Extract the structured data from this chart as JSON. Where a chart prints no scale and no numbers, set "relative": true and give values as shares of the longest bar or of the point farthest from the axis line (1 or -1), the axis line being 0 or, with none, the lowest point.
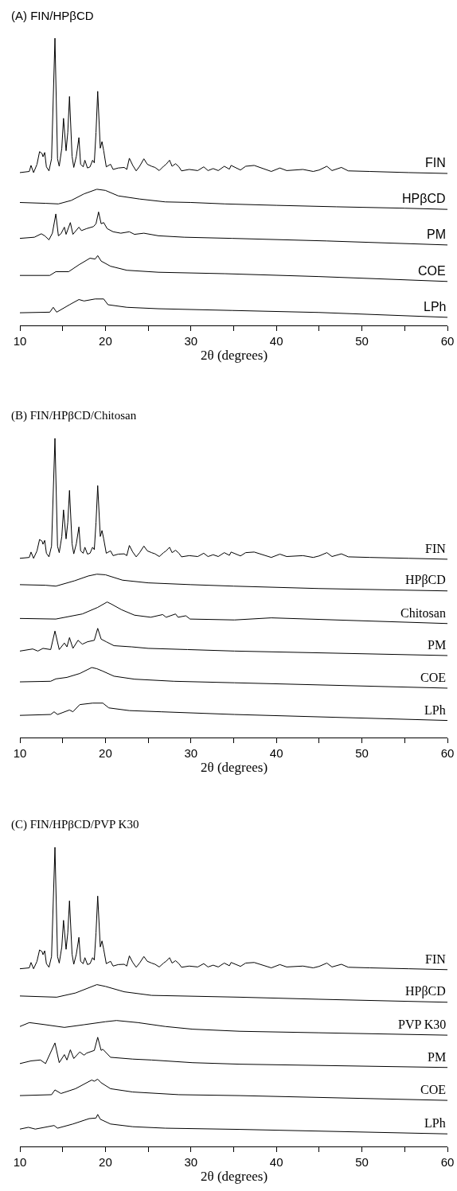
{
  "chart_data": [
    {
      "type": "line",
      "title": "(A) FIN/HPβCD",
      "xlabel": "2θ (degrees)",
      "relative": true,
      "tick_labels": "x",
      "xlim": [
        10,
        60
      ],
      "xticks": [
        10,
        {
          "value": 15,
          "label": null
        },
        20,
        {
          "value": 25,
          "label": null
        },
        30,
        {
          "value": 35,
          "label": null
        },
        40,
        {
          "value": 45,
          "label": null
        },
        50,
        {
          "value": 55,
          "label": null
        },
        60
      ],
      "series": [
        {
          "name": "FIN",
          "color": "#000000",
          "x": [
            10.0,
            11.1,
            11.3,
            11.6,
            12.0,
            12.3,
            12.6,
            12.7,
            12.9,
            13.1,
            13.4,
            13.7,
            14.1,
            14.4,
            14.6,
            14.9,
            15.1,
            15.4,
            15.6,
            15.8,
            16.1,
            16.3,
            16.6,
            16.9,
            17.1,
            17.4,
            17.6,
            17.9,
            18.2,
            18.5,
            18.7,
            18.9,
            19.1,
            19.4,
            19.6,
            19.8,
            20.1,
            20.6,
            20.9,
            21.5,
            22.2,
            22.5,
            22.8,
            23.2,
            23.6,
            24.0,
            24.5,
            24.9,
            25.4,
            25.8,
            26.3,
            26.8,
            27.1,
            27.5,
            27.8,
            28.2,
            28.6,
            28.9,
            29.8,
            30.8,
            31.5,
            32.0,
            32.6,
            33.2,
            33.9,
            34.5,
            34.7,
            35.8,
            36.4,
            37.4,
            39.4,
            40.4,
            41.2,
            43.1,
            44.3,
            45.0,
            45.9,
            46.5,
            47.6,
            48.4,
            50.9,
            55.5,
            60.0
          ],
          "values": [
            0.532,
            0.536,
            0.557,
            0.532,
            0.561,
            0.605,
            0.598,
            0.587,
            0.602,
            0.552,
            0.538,
            0.58,
            1.0,
            0.58,
            0.554,
            0.617,
            0.721,
            0.608,
            0.672,
            0.797,
            0.589,
            0.55,
            0.589,
            0.654,
            0.561,
            0.552,
            0.575,
            0.548,
            0.552,
            0.575,
            0.566,
            0.672,
            0.815,
            0.617,
            0.64,
            0.608,
            0.552,
            0.561,
            0.543,
            0.548,
            0.55,
            0.543,
            0.582,
            0.557,
            0.538,
            0.554,
            0.58,
            0.561,
            0.554,
            0.55,
            0.539,
            0.554,
            0.561,
            0.575,
            0.554,
            0.563,
            0.552,
            0.538,
            0.543,
            0.539,
            0.552,
            0.539,
            0.546,
            0.539,
            0.554,
            0.544,
            0.557,
            0.541,
            0.554,
            0.557,
            0.536,
            0.548,
            0.539,
            0.543,
            0.536,
            0.541,
            0.554,
            0.539,
            0.55,
            0.538,
            0.536,
            0.532,
            0.529
          ]
        },
        {
          "name": "HPβCD",
          "color": "#000000",
          "x": [
            10,
            13,
            14.5,
            16,
            17.5,
            19,
            20,
            21.5,
            24,
            27,
            30,
            34,
            40,
            47,
            55,
            60
          ],
          "values": [
            0.428,
            0.425,
            0.423,
            0.435,
            0.458,
            0.474,
            0.47,
            0.451,
            0.44,
            0.43,
            0.428,
            0.423,
            0.418,
            0.413,
            0.408,
            0.404
          ]
        },
        {
          "name": "PM",
          "color": "#000000",
          "x": [
            10,
            11.7,
            12.5,
            12.9,
            13.4,
            13.8,
            14.2,
            14.5,
            14.8,
            15.2,
            15.4,
            15.9,
            16.2,
            16.9,
            17.2,
            17.8,
            18.6,
            18.9,
            19.2,
            19.5,
            19.8,
            20.2,
            20.9,
            21.8,
            22.8,
            23.4,
            24.5,
            26.2,
            29.2,
            34.8,
            45.9,
            60
          ],
          "values": [
            0.303,
            0.307,
            0.319,
            0.312,
            0.298,
            0.321,
            0.388,
            0.312,
            0.319,
            0.342,
            0.317,
            0.358,
            0.317,
            0.342,
            0.33,
            0.337,
            0.344,
            0.354,
            0.395,
            0.354,
            0.358,
            0.337,
            0.326,
            0.321,
            0.326,
            0.317,
            0.321,
            0.312,
            0.307,
            0.303,
            0.294,
            0.28
          ]
        },
        {
          "name": "COE",
          "color": "#000000",
          "x": [
            10,
            13.5,
            14.2,
            15.7,
            16.9,
            18.2,
            18.8,
            19.1,
            19.5,
            20.6,
            22.5,
            26.2,
            34,
            45,
            60
          ],
          "values": [
            0.174,
            0.174,
            0.187,
            0.187,
            0.211,
            0.234,
            0.231,
            0.243,
            0.224,
            0.206,
            0.192,
            0.185,
            0.18,
            0.17,
            0.153
          ]
        },
        {
          "name": "LPh",
          "color": "#000000",
          "x": [
            10,
            13.5,
            13.9,
            14.3,
            15.8,
            16.9,
            17.5,
            18.8,
            19.8,
            20.3,
            22.5,
            26.2,
            34.8,
            45,
            60
          ],
          "values": [
            0.044,
            0.046,
            0.063,
            0.046,
            0.072,
            0.09,
            0.085,
            0.092,
            0.092,
            0.072,
            0.063,
            0.058,
            0.052,
            0.045,
            0.028
          ]
        }
      ]
    },
    {
      "type": "line",
      "title": "(B) FIN/HPβCD/Chitosan",
      "xlabel": "2θ (degrees)",
      "relative": true,
      "tick_labels": "x",
      "xlim": [
        10,
        60
      ],
      "xticks": [
        10,
        {
          "value": 15,
          "label": null
        },
        20,
        {
          "value": 25,
          "label": null
        },
        30,
        {
          "value": 35,
          "label": null
        },
        40,
        {
          "value": 45,
          "label": null
        },
        50,
        {
          "value": 55,
          "label": null
        },
        60
      ],
      "series": [
        {
          "name": "FIN",
          "color": "#000000",
          "x": [
            10.0,
            11.1,
            11.3,
            11.6,
            12.0,
            12.3,
            12.6,
            12.7,
            12.9,
            13.1,
            13.4,
            13.7,
            14.1,
            14.4,
            14.6,
            14.9,
            15.1,
            15.4,
            15.6,
            15.8,
            16.1,
            16.3,
            16.6,
            16.9,
            17.1,
            17.4,
            17.6,
            17.9,
            18.2,
            18.5,
            18.7,
            18.9,
            19.1,
            19.4,
            19.6,
            19.8,
            20.1,
            20.6,
            20.9,
            21.5,
            22.2,
            22.5,
            22.8,
            23.2,
            23.6,
            24.0,
            24.5,
            24.9,
            25.4,
            25.8,
            26.3,
            26.8,
            27.1,
            27.5,
            27.8,
            28.2,
            28.6,
            28.9,
            29.8,
            30.8,
            31.5,
            32.0,
            32.6,
            33.2,
            33.9,
            34.5,
            34.7,
            35.8,
            36.4,
            37.4,
            39.4,
            40.4,
            41.2,
            43.1,
            44.3,
            45.0,
            45.9,
            46.5,
            47.6,
            48.4,
            50.9,
            55.5,
            60.0
          ],
          "values": [
            0.599,
            0.602,
            0.62,
            0.599,
            0.624,
            0.662,
            0.656,
            0.646,
            0.659,
            0.616,
            0.604,
            0.64,
            1.0,
            0.64,
            0.618,
            0.672,
            0.761,
            0.664,
            0.719,
            0.826,
            0.648,
            0.614,
            0.648,
            0.704,
            0.624,
            0.616,
            0.636,
            0.613,
            0.616,
            0.636,
            0.628,
            0.719,
            0.842,
            0.672,
            0.692,
            0.664,
            0.616,
            0.624,
            0.608,
            0.613,
            0.614,
            0.608,
            0.642,
            0.62,
            0.604,
            0.618,
            0.64,
            0.624,
            0.618,
            0.614,
            0.605,
            0.618,
            0.624,
            0.636,
            0.618,
            0.626,
            0.616,
            0.604,
            0.608,
            0.605,
            0.616,
            0.605,
            0.611,
            0.605,
            0.618,
            0.609,
            0.62,
            0.607,
            0.618,
            0.62,
            0.602,
            0.613,
            0.605,
            0.608,
            0.602,
            0.607,
            0.618,
            0.605,
            0.614,
            0.604,
            0.602,
            0.599,
            0.596
          ]
        },
        {
          "name": "HPβCD",
          "color": "#000000",
          "x": [
            10,
            13,
            14.2,
            16.4,
            18,
            19,
            20,
            22,
            25,
            30,
            35,
            45,
            60
          ],
          "values": [
            0.511,
            0.509,
            0.506,
            0.524,
            0.54,
            0.546,
            0.544,
            0.526,
            0.517,
            0.511,
            0.506,
            0.498,
            0.49
          ]
        },
        {
          "name": "Chitosan",
          "color": "#000000",
          "x": [
            10,
            14.2,
            17.3,
            19.1,
            20.2,
            20.7,
            21.9,
            23.4,
            25.3,
            26.7,
            27.1,
            28.2,
            28.5,
            29.4,
            29.9,
            35.1,
            39.4,
            60
          ],
          "values": [
            0.398,
            0.396,
            0.413,
            0.435,
            0.453,
            0.446,
            0.427,
            0.409,
            0.402,
            0.411,
            0.402,
            0.413,
            0.402,
            0.407,
            0.396,
            0.393,
            0.4,
            0.381
          ]
        },
        {
          "name": "PM",
          "color": "#000000",
          "x": [
            10,
            11.5,
            12.1,
            12.7,
            13.6,
            14.1,
            14.6,
            15.2,
            15.5,
            15.8,
            16.2,
            16.8,
            17.3,
            17.9,
            18.7,
            19.1,
            19.5,
            20.1,
            21.0,
            23.1,
            25.0,
            29.6,
            35.1,
            60
          ],
          "values": [
            0.289,
            0.296,
            0.289,
            0.298,
            0.294,
            0.356,
            0.294,
            0.316,
            0.303,
            0.334,
            0.298,
            0.325,
            0.312,
            0.32,
            0.325,
            0.365,
            0.329,
            0.32,
            0.307,
            0.303,
            0.298,
            0.294,
            0.289,
            0.274
          ]
        },
        {
          "name": "COE",
          "color": "#000000",
          "x": [
            10,
            13.6,
            14.2,
            15.5,
            17.0,
            18.4,
            19.0,
            19.6,
            21.0,
            23.4,
            28.0,
            35.1,
            60
          ],
          "values": [
            0.186,
            0.188,
            0.196,
            0.201,
            0.214,
            0.234,
            0.23,
            0.223,
            0.205,
            0.195,
            0.188,
            0.183,
            0.165
          ]
        },
        {
          "name": "LPh",
          "color": "#000000",
          "x": [
            10,
            13.6,
            14.0,
            14.4,
            15.8,
            16.2,
            17.0,
            18.5,
            19.7,
            20.4,
            22.8,
            26.5,
            35.1,
            60
          ],
          "values": [
            0.074,
            0.077,
            0.086,
            0.077,
            0.092,
            0.086,
            0.11,
            0.115,
            0.115,
            0.099,
            0.09,
            0.086,
            0.077,
            0.057
          ]
        }
      ]
    },
    {
      "type": "line",
      "title": "(C) FIN/HPβCD/PVP K30",
      "xlabel": "2θ (degrees)",
      "relative": true,
      "tick_labels": "x",
      "xlim": [
        10,
        60
      ],
      "xticks": [
        10,
        {
          "value": 15,
          "label": null
        },
        20,
        {
          "value": 25,
          "label": null
        },
        30,
        {
          "value": 35,
          "label": null
        },
        40,
        {
          "value": 45,
          "label": null
        },
        50,
        {
          "value": 55,
          "label": null
        },
        60
      ],
      "series": [
        {
          "name": "FIN",
          "color": "#000000",
          "x": [
            10.0,
            11.1,
            11.3,
            11.6,
            12.0,
            12.3,
            12.6,
            12.7,
            12.9,
            13.1,
            13.4,
            13.7,
            14.1,
            14.4,
            14.6,
            14.9,
            15.1,
            15.4,
            15.6,
            15.8,
            16.1,
            16.3,
            16.6,
            16.9,
            17.1,
            17.4,
            17.6,
            17.9,
            18.2,
            18.5,
            18.7,
            18.9,
            19.1,
            19.4,
            19.6,
            19.8,
            20.1,
            20.6,
            20.9,
            21.5,
            22.2,
            22.5,
            22.8,
            23.2,
            23.6,
            24.0,
            24.5,
            24.9,
            25.4,
            25.8,
            26.3,
            26.8,
            27.1,
            27.5,
            27.8,
            28.2,
            28.6,
            28.9,
            29.8,
            30.8,
            31.5,
            32.0,
            32.6,
            33.2,
            33.9,
            34.5,
            34.7,
            35.8,
            36.4,
            37.4,
            39.4,
            40.4,
            41.2,
            43.1,
            44.3,
            45.0,
            45.9,
            46.5,
            47.6,
            48.4,
            50.9,
            55.5,
            60.0
          ],
          "values": [
            0.594,
            0.597,
            0.615,
            0.594,
            0.619,
            0.657,
            0.651,
            0.641,
            0.654,
            0.611,
            0.599,
            0.635,
            1.0,
            0.635,
            0.613,
            0.667,
            0.756,
            0.659,
            0.714,
            0.821,
            0.643,
            0.609,
            0.643,
            0.699,
            0.619,
            0.611,
            0.631,
            0.608,
            0.611,
            0.631,
            0.623,
            0.714,
            0.837,
            0.667,
            0.687,
            0.659,
            0.611,
            0.619,
            0.603,
            0.608,
            0.609,
            0.603,
            0.637,
            0.615,
            0.599,
            0.613,
            0.635,
            0.619,
            0.613,
            0.609,
            0.6,
            0.613,
            0.619,
            0.631,
            0.613,
            0.621,
            0.611,
            0.599,
            0.603,
            0.6,
            0.611,
            0.6,
            0.606,
            0.6,
            0.613,
            0.604,
            0.615,
            0.602,
            0.613,
            0.615,
            0.597,
            0.608,
            0.6,
            0.603,
            0.597,
            0.602,
            0.613,
            0.6,
            0.609,
            0.599,
            0.597,
            0.594,
            0.591
          ]
        },
        {
          "name": "HPβCD",
          "color": "#000000",
          "x": [
            10,
            14.3,
            16.5,
            19.0,
            20.0,
            22.2,
            25.4,
            35.7,
            45,
            60
          ],
          "values": [
            0.503,
            0.499,
            0.513,
            0.541,
            0.535,
            0.517,
            0.505,
            0.499,
            0.492,
            0.482
          ]
        },
        {
          "name": "PVP K30",
          "color": "#000000",
          "x": [
            10,
            11.1,
            12.7,
            15.2,
            17.5,
            20.0,
            21.3,
            23.8,
            27.0,
            30.2,
            35.7,
            45,
            60
          ],
          "values": [
            0.401,
            0.414,
            0.408,
            0.398,
            0.407,
            0.417,
            0.421,
            0.414,
            0.401,
            0.392,
            0.385,
            0.38,
            0.372
          ]
        },
        {
          "name": "PM",
          "color": "#000000",
          "x": [
            10,
            11.3,
            12.4,
            13.0,
            14.1,
            14.6,
            15.2,
            15.5,
            15.9,
            16.3,
            17.0,
            17.5,
            17.8,
            18.7,
            19.1,
            19.5,
            19.7,
            20.6,
            23.2,
            25.4,
            30.2,
            35.7,
            60
          ],
          "values": [
            0.277,
            0.286,
            0.289,
            0.277,
            0.346,
            0.28,
            0.307,
            0.289,
            0.323,
            0.294,
            0.316,
            0.305,
            0.312,
            0.321,
            0.365,
            0.321,
            0.325,
            0.298,
            0.292,
            0.289,
            0.28,
            0.275,
            0.264
          ]
        },
        {
          "name": "COE",
          "color": "#000000",
          "x": [
            10,
            13.7,
            14.1,
            14.8,
            16.5,
            18.4,
            18.7,
            19.1,
            19.5,
            20.6,
            23.2,
            28.6,
            35.7,
            60
          ],
          "values": [
            0.17,
            0.173,
            0.189,
            0.177,
            0.193,
            0.222,
            0.218,
            0.225,
            0.213,
            0.193,
            0.182,
            0.173,
            0.17,
            0.154
          ]
        },
        {
          "name": "LPh",
          "color": "#000000",
          "x": [
            10,
            11.0,
            11.8,
            14.0,
            14.4,
            16.2,
            18.1,
            18.9,
            19.1,
            19.4,
            20.6,
            23.2,
            27.0,
            35.7,
            60
          ],
          "values": [
            0.058,
            0.064,
            0.058,
            0.07,
            0.061,
            0.075,
            0.093,
            0.095,
            0.107,
            0.091,
            0.075,
            0.066,
            0.061,
            0.057,
            0.042
          ]
        }
      ]
    }
  ]
}
